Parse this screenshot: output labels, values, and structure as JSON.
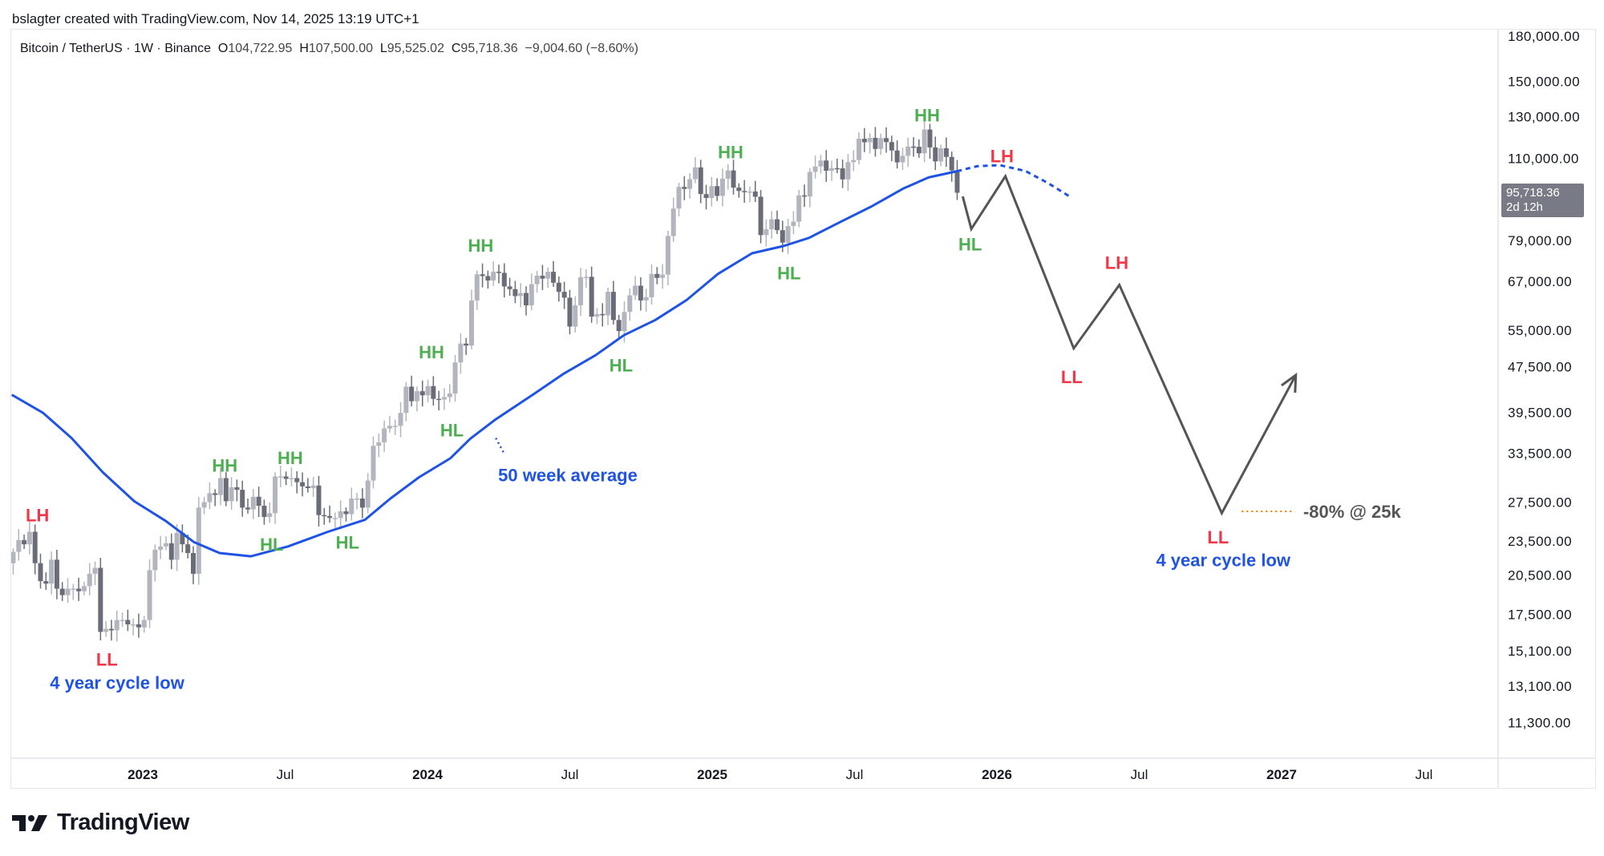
{
  "header": {
    "attribution": "bslagter created with TradingView.com, Nov 14, 2025 13:19 UTC+1"
  },
  "legend": {
    "symbol": "Bitcoin / TetherUS · 1W · Binance",
    "o_label": "O",
    "o": "104,722.95",
    "h_label": "H",
    "h": "107,500.00",
    "l_label": "L",
    "l": "95,525.02",
    "c_label": "C",
    "c": "95,718.36",
    "change": "−9,004.60 (−8.60%)"
  },
  "last_price": {
    "price": "95,718.36",
    "countdown": "2d 12h"
  },
  "logo": {
    "text": "TradingView"
  },
  "colors": {
    "up": "#b2b5be",
    "down": "#6a6d78",
    "ma": "#1e53e5",
    "green": "#4caf50",
    "red": "#f23645",
    "blue": "#1e53e5",
    "path": "#555555",
    "orange": "#f57c00"
  },
  "chart_data": {
    "type": "candlestick",
    "title": "Bitcoin / TetherUS 1W",
    "yscale": "log",
    "ylim": [
      10000,
      190000
    ],
    "xlim": [
      2022.54,
      2027.6
    ],
    "y_ticks": [
      "180,000.00",
      "150,000.00",
      "130,000.00",
      "110,000.00",
      "79,000.00",
      "67,000.00",
      "55,000.00",
      "47,500.00",
      "39,500.00",
      "33,500.00",
      "27,500.00",
      "23,500.00",
      "20,500.00",
      "17,500.00",
      "15,100.00",
      "13,100.00",
      "11,300.00"
    ],
    "y_tick_values": [
      180000,
      150000,
      130000,
      110000,
      79000,
      67000,
      55000,
      47500,
      39500,
      33500,
      27500,
      23500,
      20500,
      17500,
      15100,
      13100,
      11300
    ],
    "x_ticks": [
      {
        "label": "2023",
        "t": 2023,
        "bold": true
      },
      {
        "label": "Jul",
        "t": 2023.5
      },
      {
        "label": "2024",
        "t": 2024,
        "bold": true
      },
      {
        "label": "Jul",
        "t": 2024.5
      },
      {
        "label": "2025",
        "t": 2025,
        "bold": true
      },
      {
        "label": "Jul",
        "t": 2025.5
      },
      {
        "label": "2026",
        "t": 2026,
        "bold": true
      },
      {
        "label": "Jul",
        "t": 2026.5
      },
      {
        "label": "2027",
        "t": 2027,
        "bold": true
      },
      {
        "label": "Jul",
        "t": 2027.5
      }
    ],
    "start_week": 2022.545,
    "start_open": 21500,
    "weekly_closes": [
      22500,
      23600,
      23200,
      24400,
      21500,
      20000,
      19800,
      21800,
      19400,
      18900,
      19400,
      19400,
      19200,
      19600,
      20600,
      21100,
      16300,
      16500,
      16400,
      17100,
      17100,
      16800,
      16800,
      16600,
      17100,
      20900,
      22700,
      23000,
      23300,
      21800,
      24300,
      23200,
      22400,
      20600,
      26900,
      27500,
      28500,
      28300,
      30300,
      27600,
      29200,
      28900,
      26900,
      26700,
      28100,
      27100,
      25900,
      26300,
      30500,
      30500,
      30200,
      30300,
      29800,
      29300,
      29100,
      29400,
      26100,
      26000,
      25800,
      25800,
      26500,
      26200,
      27900,
      27900,
      26900,
      30000,
      34500,
      35000,
      37000,
      37400,
      37400,
      39400,
      43800,
      41300,
      43000,
      42300,
      43900,
      41700,
      41600,
      42000,
      42600,
      48300,
      52100,
      51700,
      62000,
      68900,
      68400,
      67200,
      69600,
      69300,
      65600,
      64900,
      63100,
      63900,
      60800,
      66200,
      68500,
      67700,
      69600,
      66600,
      64200,
      62700,
      55800,
      60800,
      68100,
      68200,
      58100,
      58700,
      58400,
      64200,
      57300,
      54800,
      59200,
      63300,
      65800,
      62000,
      62800,
      69000,
      67900,
      68800,
      80400,
      89800,
      98000,
      97200,
      101100,
      106000,
      95200,
      93700,
      98300,
      94500,
      101300,
      104700,
      97700,
      96400,
      96100,
      96200,
      94200,
      80700,
      82600,
      86000,
      82300,
      78300,
      83700,
      85200,
      94700,
      94300,
      104100,
      106400,
      109000,
      104600,
      105700,
      105600,
      101000,
      108300,
      109200,
      119000,
      117300,
      119400,
      114200,
      119300,
      117400,
      113500,
      108200,
      111100,
      115300,
      115200,
      112200,
      123500,
      114900,
      108600,
      114500,
      110600,
      104700,
      95718.36
    ],
    "series": [
      {
        "name": "50 week average",
        "type": "line",
        "points": [
          [
            2022.54,
            42400
          ],
          [
            2022.65,
            39400
          ],
          [
            2022.75,
            35600
          ],
          [
            2022.86,
            31000
          ],
          [
            2022.97,
            27600
          ],
          [
            2023.08,
            25500
          ],
          [
            2023.18,
            23400
          ],
          [
            2023.27,
            22400
          ],
          [
            2023.38,
            22100
          ],
          [
            2023.51,
            23000
          ],
          [
            2023.65,
            24400
          ],
          [
            2023.78,
            25600
          ],
          [
            2023.87,
            27900
          ],
          [
            2023.97,
            30400
          ],
          [
            2024.08,
            32800
          ],
          [
            2024.15,
            35500
          ],
          [
            2024.24,
            38400
          ],
          [
            2024.37,
            42400
          ],
          [
            2024.48,
            46200
          ],
          [
            2024.59,
            49700
          ],
          [
            2024.69,
            53900
          ],
          [
            2024.8,
            57300
          ],
          [
            2024.91,
            62100
          ],
          [
            2025.02,
            69000
          ],
          [
            2025.14,
            75000
          ],
          [
            2025.25,
            77200
          ],
          [
            2025.34,
            79800
          ],
          [
            2025.45,
            85100
          ],
          [
            2025.56,
            90600
          ],
          [
            2025.67,
            97300
          ],
          [
            2025.76,
            101800
          ],
          [
            2025.86,
            104400
          ]
        ]
      },
      {
        "name": "50 week average projection",
        "type": "dotted-line",
        "points": [
          [
            2025.86,
            104400
          ],
          [
            2025.93,
            106500
          ],
          [
            2026.01,
            107000
          ],
          [
            2026.1,
            104500
          ],
          [
            2026.18,
            99500
          ],
          [
            2026.26,
            94000
          ]
        ]
      },
      {
        "name": "Projected path",
        "type": "line",
        "points": [
          [
            2025.88,
            94300
          ],
          [
            2025.91,
            82700
          ],
          [
            2026.03,
            102300
          ],
          [
            2026.27,
            51100
          ],
          [
            2026.43,
            66000
          ],
          [
            2026.79,
            26300
          ],
          [
            2027.05,
            45900
          ]
        ]
      }
    ],
    "annotations": [
      {
        "text": "LH",
        "t": 2022.63,
        "p": 26100,
        "color": "red"
      },
      {
        "text": "LL",
        "t": 2022.874,
        "p": 14600,
        "color": "red"
      },
      {
        "text": "4 year cycle low",
        "t": 2022.91,
        "p": 13300,
        "color": "blue"
      },
      {
        "text": "HH",
        "t": 2023.288,
        "p": 31900,
        "color": "green"
      },
      {
        "text": "HL",
        "t": 2023.453,
        "p": 23200,
        "color": "green"
      },
      {
        "text": "HH",
        "t": 2023.518,
        "p": 32900,
        "color": "green"
      },
      {
        "text": "HL",
        "t": 2023.719,
        "p": 23400,
        "color": "green"
      },
      {
        "text": "HH",
        "t": 2024.014,
        "p": 50400,
        "color": "green"
      },
      {
        "text": "HL",
        "t": 2024.086,
        "p": 36800,
        "color": "green"
      },
      {
        "text": "HH",
        "t": 2024.187,
        "p": 77500,
        "color": "green"
      },
      {
        "text": "50 week average",
        "t": 2024.493,
        "p": 30700,
        "color": "blue"
      },
      {
        "text": "HL",
        "t": 2024.68,
        "p": 47800,
        "color": "green"
      },
      {
        "text": "HH",
        "t": 2025.065,
        "p": 112800,
        "color": "green"
      },
      {
        "text": "HL",
        "t": 2025.27,
        "p": 69300,
        "color": "green"
      },
      {
        "text": "HH",
        "t": 2025.755,
        "p": 131000,
        "color": "green"
      },
      {
        "text": "HL",
        "t": 2025.906,
        "p": 77800,
        "color": "green"
      },
      {
        "text": "LH",
        "t": 2026.018,
        "p": 111000,
        "color": "red"
      },
      {
        "text": "LL",
        "t": 2026.263,
        "p": 45600,
        "color": "red"
      },
      {
        "text": "LH",
        "t": 2026.421,
        "p": 72200,
        "color": "red"
      },
      {
        "text": "LL",
        "t": 2026.777,
        "p": 23900,
        "color": "red"
      },
      {
        "text": "4 year cycle low",
        "t": 2026.795,
        "p": 21800,
        "color": "blue"
      },
      {
        "text": "-80% @ 25k",
        "t": 2027.076,
        "p": 26500,
        "color": "path",
        "anchor": "start"
      }
    ],
    "target_marker": {
      "t_from": 2026.86,
      "t_to": 2027.04,
      "p": 26500
    }
  }
}
